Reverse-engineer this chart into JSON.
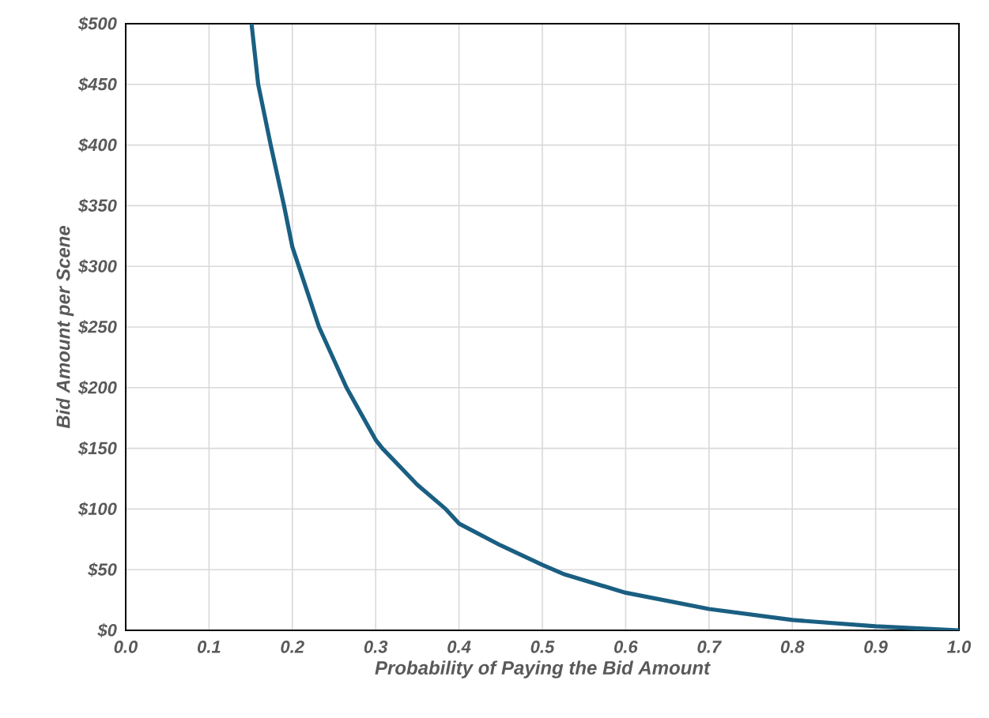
{
  "chart_data": {
    "type": "line",
    "xlabel": "Probability of Paying the Bid Amount",
    "ylabel": "Bid Amount per Scene",
    "x": [
      0.151,
      0.159,
      0.174,
      0.19,
      0.2,
      0.232,
      0.265,
      0.3,
      0.308,
      0.35,
      0.384,
      0.4,
      0.45,
      0.5,
      0.527,
      0.6,
      0.7,
      0.8,
      0.9,
      1.0
    ],
    "series": [
      {
        "color": "#1a5f82",
        "values": [
          500,
          450,
          400,
          350,
          316,
          250,
          200,
          157,
          150,
          120,
          100,
          88,
          70,
          54,
          46,
          31,
          17.6,
          8.5,
          3.3,
          0
        ]
      }
    ],
    "xlim": [
      0,
      1
    ],
    "ylim": [
      0,
      500
    ],
    "xticks": [
      {
        "value": 0,
        "label": "0.0"
      },
      0.1,
      0.2,
      0.3,
      0.4,
      0.5,
      0.6,
      0.7,
      0.8,
      0.9,
      {
        "value": 1,
        "label": "1.0"
      }
    ],
    "yticks": [
      {
        "value": 0,
        "label": "$0"
      },
      {
        "value": 50,
        "label": "$50"
      },
      {
        "value": 100,
        "label": "$100"
      },
      {
        "value": 150,
        "label": "$150"
      },
      {
        "value": 200,
        "label": "$200"
      },
      {
        "value": 250,
        "label": "$250"
      },
      {
        "value": 300,
        "label": "$300"
      },
      {
        "value": 350,
        "label": "$350"
      },
      {
        "value": 400,
        "label": "$400"
      },
      {
        "value": 450,
        "label": "$450"
      },
      {
        "value": 500,
        "label": "$500"
      }
    ],
    "grid": true,
    "marker": "none",
    "line_style": "solid"
  }
}
